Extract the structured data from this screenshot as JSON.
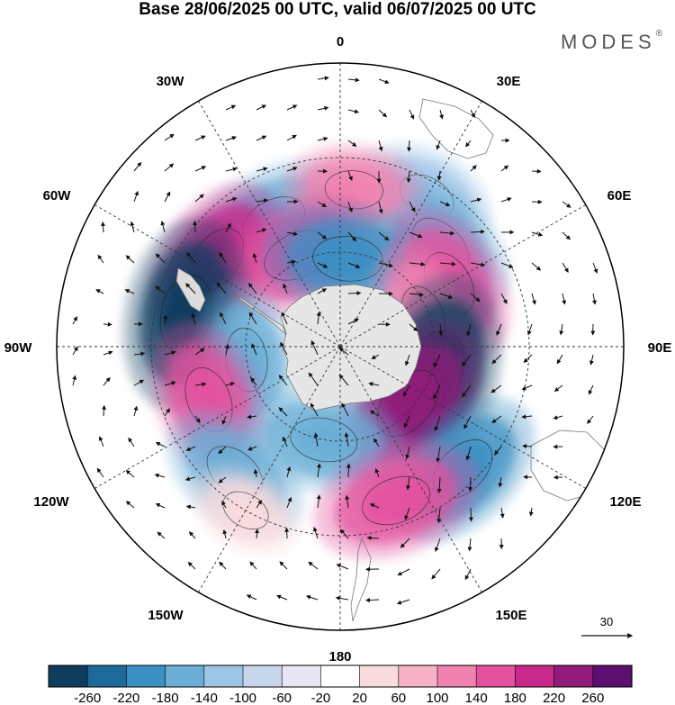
{
  "title": "Base 28/06/2025 00 UTC, valid 06/07/2025 00 UTC",
  "brand": "MODES",
  "brand_mark": "®",
  "longitude_labels": {
    "lon0": "0",
    "lon30e": "30E",
    "lon60e": "60E",
    "lon90e": "90E",
    "lon120e": "120E",
    "lon150e": "150E",
    "lon180": "180",
    "lon150w": "150W",
    "lon120w": "120W",
    "lon90w": "90W",
    "lon60w": "60W",
    "lon30w": "30W"
  },
  "reference_vector": {
    "label": "30"
  },
  "colorbar": {
    "colors": [
      "#0e3d5e",
      "#1d6a9a",
      "#3a8fc3",
      "#6aaed6",
      "#9cc5e6",
      "#c8d6ec",
      "#e8e6f2",
      "#ffffff",
      "#fbdcde",
      "#f6b2c4",
      "#f082b0",
      "#e4519e",
      "#c72889",
      "#911a7a",
      "#5b0f6e"
    ],
    "labels": [
      "-260",
      "-220",
      "-180",
      "-140",
      "-100",
      "-60",
      "-20",
      "20",
      "60",
      "100",
      "140",
      "180",
      "220",
      "260"
    ]
  },
  "anomaly_centres": [
    {
      "lon": 30,
      "lat": -35,
      "value": -120,
      "color": "#9cc5e6"
    },
    {
      "lon": 45,
      "lat": -45,
      "value": -180,
      "color": "#6aaed6"
    },
    {
      "lon": -28,
      "lat": -45,
      "value": -180,
      "color": "#6aaed6"
    },
    {
      "lon": 5,
      "lat": -40,
      "value": 120,
      "color": "#f082b0"
    },
    {
      "lon": -55,
      "lat": -42,
      "value": 200,
      "color": "#c72889"
    },
    {
      "lon": -25,
      "lat": -58,
      "value": 200,
      "color": "#e4519e"
    },
    {
      "lon": 5,
      "lat": -62,
      "value": -200,
      "color": "#3a8fc3"
    },
    {
      "lon": 60,
      "lat": -50,
      "value": 180,
      "color": "#e4519e"
    },
    {
      "lon": 70,
      "lat": -62,
      "value": 150,
      "color": "#f082b0"
    },
    {
      "lon": -78,
      "lat": -40,
      "value": -260,
      "color": "#0e3d5e"
    },
    {
      "lon": -98,
      "lat": -60,
      "value": -160,
      "color": "#6aaed6"
    },
    {
      "lon": -112,
      "lat": -45,
      "value": 180,
      "color": "#e4519e"
    },
    {
      "lon": 103,
      "lat": -58,
      "value": -260,
      "color": "#0e3d5e"
    },
    {
      "lon": 130,
      "lat": -62,
      "value": 240,
      "color": "#911a7a"
    },
    {
      "lon": -170,
      "lat": -60,
      "value": -180,
      "color": "#6aaed6"
    },
    {
      "lon": 135,
      "lat": -35,
      "value": -200,
      "color": "#3a8fc3"
    },
    {
      "lon": 160,
      "lat": -38,
      "value": 200,
      "color": "#e4519e"
    },
    {
      "lon": -140,
      "lat": -38,
      "value": -160,
      "color": "#6aaed6"
    },
    {
      "lon": -150,
      "lat": -30,
      "value": 60,
      "color": "#fbdcde"
    }
  ]
}
